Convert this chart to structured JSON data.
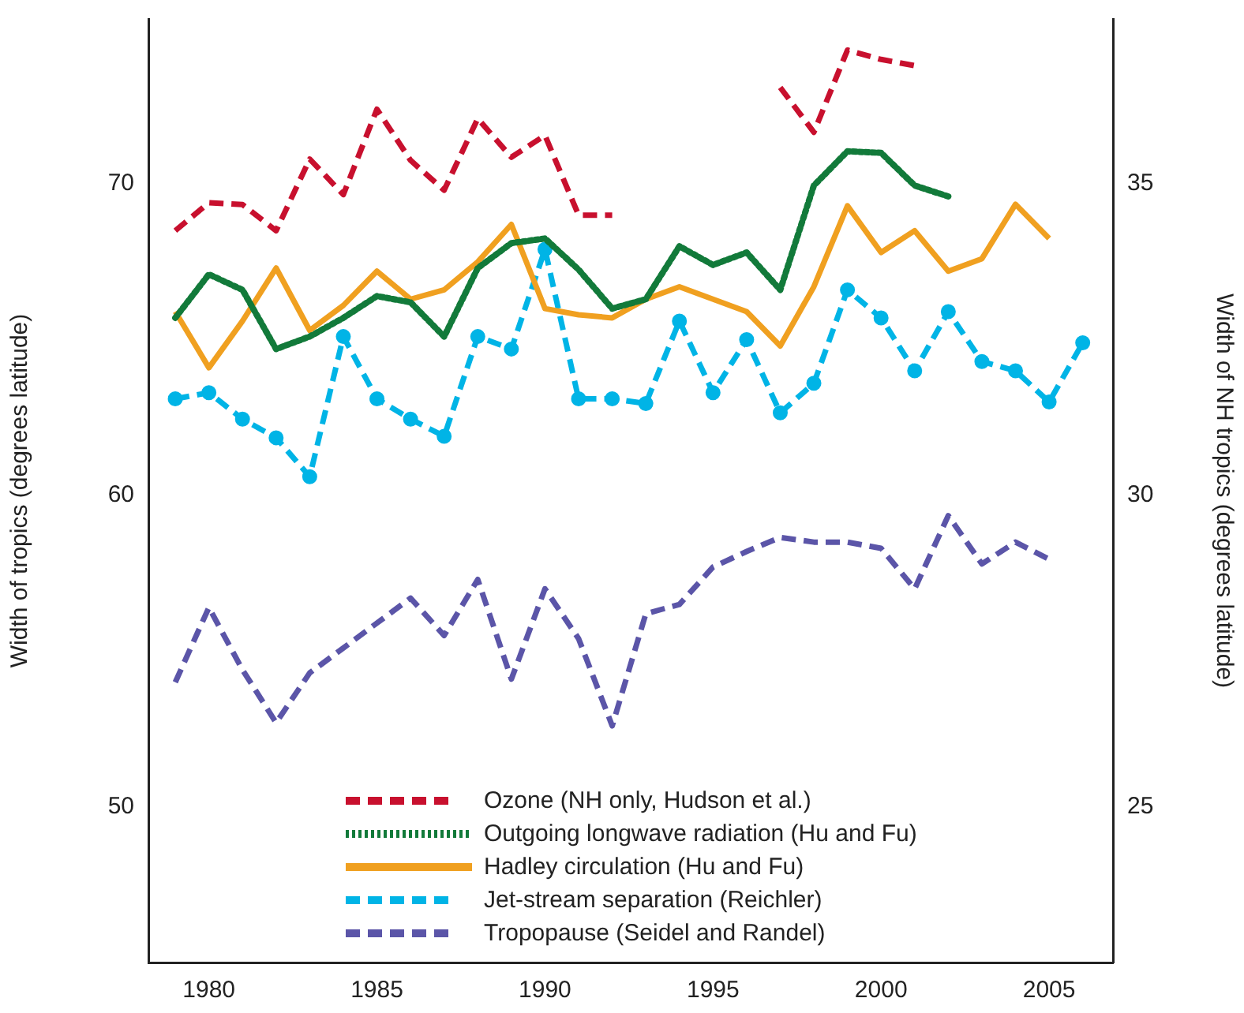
{
  "chart_data": {
    "type": "line",
    "xlabel": null,
    "ylabel": "Width of tropics (degrees latitude)",
    "y2label": "Width of NH tropics (degrees latitude)",
    "xlim": [
      1978.2,
      2006.9
    ],
    "xticks": [
      1980,
      1985,
      1990,
      1995,
      2000,
      2005
    ],
    "ylim": [
      45,
      75.3
    ],
    "yticks": [
      50,
      60,
      70
    ],
    "y2lim": [
      22.5,
      37.65
    ],
    "y2ticks": [
      25,
      30,
      35
    ],
    "grid": false,
    "legend": "bottom",
    "series": [
      {
        "name": "Ozone (NH only, Hudson et al.)",
        "color": "#c8102e",
        "axis": "y2",
        "line_style": "dashed",
        "marker": "none",
        "x": [
          1979,
          1980,
          1981,
          1982,
          1983,
          1984,
          1985,
          1986,
          1987,
          1988,
          1989,
          1990,
          1991,
          1992,
          1993,
          1994,
          1995,
          1996,
          1997,
          1998,
          1999,
          2000,
          2001
        ],
        "values": [
          34.25,
          34.7,
          34.67,
          34.25,
          35.4,
          34.83,
          36.2,
          35.38,
          34.9,
          36.05,
          35.43,
          35.78,
          34.5,
          34.5,
          null,
          null,
          null,
          null,
          36.55,
          35.83,
          37.15,
          37.0,
          36.9
        ]
      },
      {
        "name": "Outgoing longwave radiation (Hu and Fu)",
        "color": "#127a3a",
        "line_style": "dotted",
        "marker": "none",
        "x": [
          1979,
          1980,
          1981,
          1982,
          1983,
          1984,
          1985,
          1986,
          1987,
          1988,
          1989,
          1990,
          1991,
          1992,
          1993,
          1994,
          1995,
          1996,
          1997,
          1998,
          1999,
          2000,
          2001,
          2002
        ],
        "values": [
          65.7,
          67.1,
          66.6,
          64.7,
          65.1,
          65.7,
          66.4,
          66.2,
          65.1,
          67.3,
          68.1,
          68.25,
          67.25,
          66.0,
          66.3,
          68.0,
          67.4,
          67.8,
          66.6,
          69.95,
          71.05,
          71.0,
          69.95,
          69.6
        ]
      },
      {
        "name": "Hadley circulation (Hu and Fu)",
        "color": "#f0a020",
        "line_style": "solid",
        "marker": "none",
        "x": [
          1979,
          1980,
          1981,
          1982,
          1983,
          1984,
          1985,
          1986,
          1987,
          1988,
          1989,
          1990,
          1991,
          1992,
          1993,
          1994,
          1995,
          1996,
          1997,
          1998,
          1999,
          2000,
          2001,
          2002,
          2003,
          2004,
          2005
        ],
        "values": [
          65.9,
          64.1,
          65.6,
          67.3,
          65.3,
          66.1,
          67.2,
          66.3,
          66.6,
          67.5,
          68.7,
          66.0,
          65.8,
          65.7,
          66.3,
          66.7,
          66.3,
          65.9,
          64.8,
          66.7,
          69.3,
          67.8,
          68.5,
          67.2,
          67.6,
          69.35,
          68.25
        ]
      },
      {
        "name": "Jet-stream separation (Reichler)",
        "color": "#00b4e6",
        "line_style": "dashed",
        "marker": "circle",
        "x": [
          1979,
          1980,
          1981,
          1982,
          1983,
          1984,
          1985,
          1986,
          1987,
          1988,
          1989,
          1990,
          1991,
          1992,
          1993,
          1994,
          1995,
          1996,
          1997,
          1998,
          1999,
          2000,
          2001,
          2002,
          2003,
          2004,
          2005,
          2006
        ],
        "values": [
          63.1,
          63.3,
          62.45,
          61.85,
          60.6,
          65.1,
          63.1,
          62.45,
          61.9,
          65.1,
          64.7,
          67.9,
          63.1,
          63.1,
          62.95,
          65.6,
          63.3,
          65.0,
          62.65,
          63.6,
          66.6,
          65.7,
          64.0,
          65.9,
          64.3,
          64.0,
          63.0,
          64.9
        ]
      },
      {
        "name": "Tropopause (Seidel and Randel)",
        "color": "#5b55a8",
        "line_style": "dashed",
        "marker": "none",
        "x": [
          1979,
          1980,
          1981,
          1982,
          1983,
          1984,
          1985,
          1986,
          1987,
          1988,
          1989,
          1990,
          1991,
          1992,
          1993,
          1994,
          1995,
          1996,
          1997,
          1998,
          1999,
          2000,
          2001,
          2002,
          2003,
          2004,
          2005
        ],
        "values": [
          54.0,
          56.4,
          54.4,
          52.7,
          54.3,
          55.1,
          55.9,
          56.7,
          55.5,
          57.3,
          54.1,
          57.0,
          55.4,
          52.6,
          56.2,
          56.5,
          57.7,
          58.2,
          58.65,
          58.5,
          58.5,
          58.3,
          57.0,
          59.35,
          57.8,
          58.5,
          57.95
        ]
      }
    ]
  }
}
